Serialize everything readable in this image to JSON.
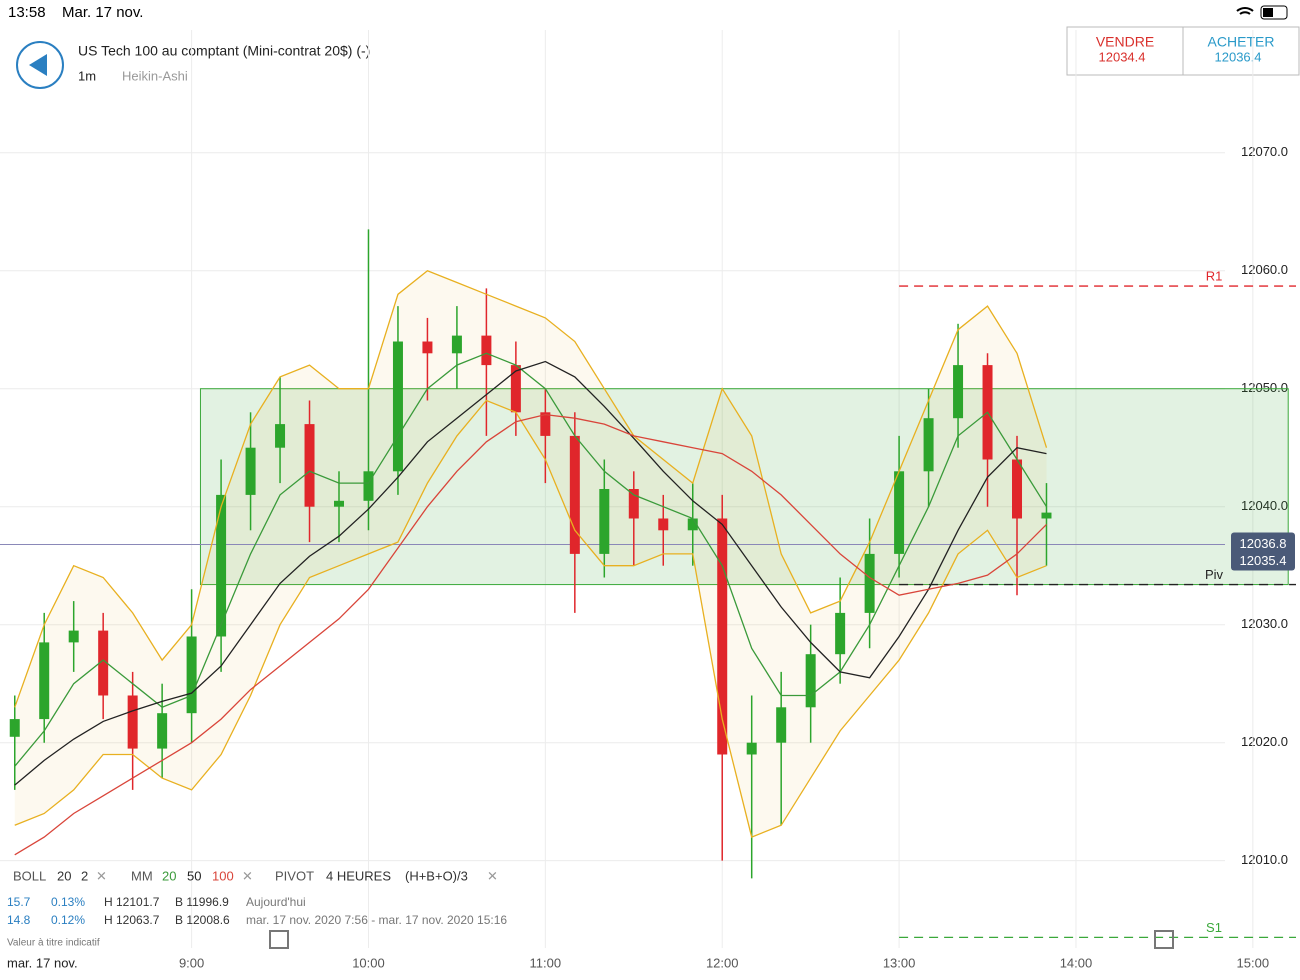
{
  "status_bar": {
    "time": "13:58",
    "date": "Mar. 17 nov."
  },
  "header": {
    "instrument": "US Tech 100 au comptant (Mini-contrat 20$) (-)",
    "interval": "1m",
    "style": "Heikin-Ashi",
    "sell": {
      "label": "VENDRE",
      "price": "12034.4"
    },
    "buy": {
      "label": "ACHETER",
      "price": "12036.4"
    }
  },
  "legend": {
    "boll": [
      "BOLL",
      "20",
      "2"
    ],
    "mm": [
      "MM",
      "20",
      "50",
      "100"
    ],
    "pivot": [
      "PIVOT",
      "4 HEURES",
      "(H+B+O)/3"
    ],
    "rows": [
      [
        "15.7",
        "0.13%",
        "H 12101.7",
        "B 11996.9",
        "Aujourd'hui"
      ],
      [
        "14.8",
        "0.12%",
        "H 12063.7",
        "B 12008.6",
        "mar. 17 nov. 2020 7:56 - mar. 17 nov. 2020 15:16"
      ]
    ],
    "note": "Valeur à titre indicatif",
    "date": "mar. 17 nov."
  },
  "chart_data": {
    "type": "candlestick",
    "xlim": [
      "7:55",
      "15:16"
    ],
    "xticks": [
      "9:00",
      "10:00",
      "11:00",
      "12:00",
      "13:00",
      "14:00",
      "15:00"
    ],
    "ylim": [
      12002.6,
      12080.4
    ],
    "yticks": [
      {
        "value": 12010,
        "label": "12010.0"
      },
      {
        "value": 12020,
        "label": "12020.0"
      },
      {
        "value": 12030,
        "label": "12030.0"
      },
      {
        "value": 12040,
        "label": "12040.0"
      },
      {
        "value": 12050,
        "label": "12050.0"
      },
      {
        "value": 12060,
        "label": "12060.0"
      },
      {
        "value": 12070,
        "label": "12070.0"
      }
    ],
    "grid": true,
    "x": [
      "8:00",
      "8:10",
      "8:20",
      "8:30",
      "8:40",
      "8:50",
      "9:00",
      "9:10",
      "9:20",
      "9:30",
      "9:40",
      "9:50",
      "10:00",
      "10:10",
      "10:20",
      "10:30",
      "10:40",
      "10:50",
      "11:00",
      "11:10",
      "11:20",
      "11:30",
      "11:40",
      "11:50",
      "12:00",
      "12:10",
      "12:20",
      "12:30",
      "12:40",
      "12:50",
      "13:00",
      "13:10",
      "13:20",
      "13:30",
      "13:40",
      "13:50"
    ],
    "up_color": "#2ca52c",
    "down_color": "#e0262b",
    "open": [
      12020.5,
      12022,
      12028.5,
      12029.5,
      12024,
      12019.5,
      12022.5,
      12029,
      12041,
      12045,
      12047,
      12040,
      12040.5,
      12043,
      12054,
      12053,
      12054.5,
      12052,
      12048,
      12046,
      12036,
      12041.5,
      12039,
      12038,
      12039,
      12019,
      12020,
      12023,
      12027.5,
      12031,
      12036,
      12043,
      12047.5,
      12052,
      12044,
      12039
    ],
    "close": [
      12022,
      12028.5,
      12029.5,
      12024,
      12019.5,
      12022.5,
      12029,
      12041,
      12045,
      12047,
      12040,
      12040.5,
      12043,
      12054,
      12053,
      12054.5,
      12052,
      12048,
      12046,
      12036,
      12041.5,
      12039,
      12038,
      12039,
      12019,
      12020,
      12023,
      12027.5,
      12031,
      12036,
      12043,
      12047.5,
      12052,
      12044,
      12039,
      12039.5
    ],
    "high": [
      12024,
      12031,
      12032,
      12031,
      12026,
      12025,
      12033,
      12044,
      12048,
      12051,
      12049,
      12043,
      12063.5,
      12057,
      12056,
      12057,
      12058.5,
      12054,
      12050,
      12048,
      12044,
      12043,
      12041,
      12042,
      12041,
      12024,
      12026,
      12030,
      12034,
      12039,
      12046,
      12050,
      12055.5,
      12053,
      12046,
      12042
    ],
    "low": [
      12016,
      12020,
      12026,
      12022,
      12016,
      12017,
      12020,
      12026,
      12038,
      12042,
      12037,
      12037,
      12038,
      12041,
      12049,
      12050,
      12046,
      12046,
      12042,
      12031,
      12034,
      12035,
      12035,
      12035,
      12010,
      12008.5,
      12013,
      12020,
      12025,
      12028,
      12034,
      12040,
      12045,
      12040,
      12032.5,
      12035
    ],
    "lines": [
      {
        "name": "BB+",
        "color": "#e8b020",
        "values": [
          12023,
          12030,
          12035,
          12034,
          12031,
          12027,
          12030,
          12040,
          12047,
          12051,
          12052,
          12050,
          12050,
          12058,
          12060,
          12059,
          12058,
          12057,
          12056,
          12054,
          12050,
          12046,
          12044,
          12042,
          12050,
          12046,
          12036,
          12031,
          12032,
          12037,
          12043,
          12049,
          12055,
          12057,
          12053,
          12045
        ]
      },
      {
        "name": "BB-",
        "color": "#e8b020",
        "values": [
          12013,
          12014,
          12016,
          12019,
          12019,
          12017,
          12016,
          12019,
          12024,
          12030,
          12034,
          12035,
          12036,
          12037,
          12042,
          12046,
          12049,
          12048,
          12044,
          12038,
          12035,
          12035,
          12036,
          12036,
          12022,
          12012,
          12013,
          12017,
          12021,
          12024,
          12027,
          12031,
          12036,
          12038,
          12034,
          12035
        ]
      },
      {
        "name": "MM20",
        "color": "#3a9a3a",
        "values": [
          12018,
          12021,
          12025,
          12027,
          12025,
          12023,
          12024,
          12030,
          12036,
          12041,
          12043,
          12042,
          12042,
          12046,
          12050,
          12052,
          12053,
          12052,
          12050,
          12046,
          12043,
          12041,
          12040,
          12039,
          12035,
          12028,
          12024,
          12024,
          12026,
          12030,
          12035,
          12040,
          12046,
          12048,
          12044,
          12040
        ]
      },
      {
        "name": "MM50",
        "color": "#222222",
        "values": [
          12016.4,
          12018.5,
          12020.3,
          12021.8,
          12022.7,
          12023.5,
          12024.2,
          12026.5,
          12030,
          12033.5,
          12035.8,
          12037.5,
          12039.8,
          12042.5,
          12045.5,
          12047.5,
          12049.5,
          12051.5,
          12052.3,
          12051,
          12048.5,
          12045.8,
          12043,
          12040.5,
          12038.5,
          12035,
          12031.5,
          12028.5,
          12026,
          12025.5,
          12029,
          12033,
          12038,
          12042.5,
          12045,
          12044.5
        ]
      },
      {
        "name": "MM100",
        "color": "#d9453a",
        "values": [
          12010.5,
          12012,
          12014,
          12015.5,
          12017,
          12018.5,
          12020,
          12022,
          12024.5,
          12026.5,
          12028.5,
          12030.5,
          12033,
          12036.5,
          12040,
          12043,
          12045.5,
          12047.2,
          12047.8,
          12047.5,
          12047,
          12046,
          12045.5,
          12045,
          12044.5,
          12043,
          12041,
          12038.5,
          12036,
          12034,
          12032.5,
          12033,
          12033.5,
          12034.2,
          12036,
          12038.5
        ]
      }
    ],
    "zone": {
      "x": [
        "9:03",
        "15:12"
      ],
      "y": [
        12033.4,
        12050
      ],
      "color": "#3aa83a"
    },
    "pivots": [
      {
        "name": "R1",
        "value": 12058.7,
        "color": "#e0262b",
        "from": "13:00"
      },
      {
        "name": "Piv",
        "value": 12033.4,
        "color": "#222222",
        "from": "13:00"
      },
      {
        "name": "S1",
        "value": 12003.5,
        "color": "#3aa83a",
        "from": "13:00"
      }
    ],
    "price_lines": [
      12036.8,
      12035.4
    ]
  }
}
